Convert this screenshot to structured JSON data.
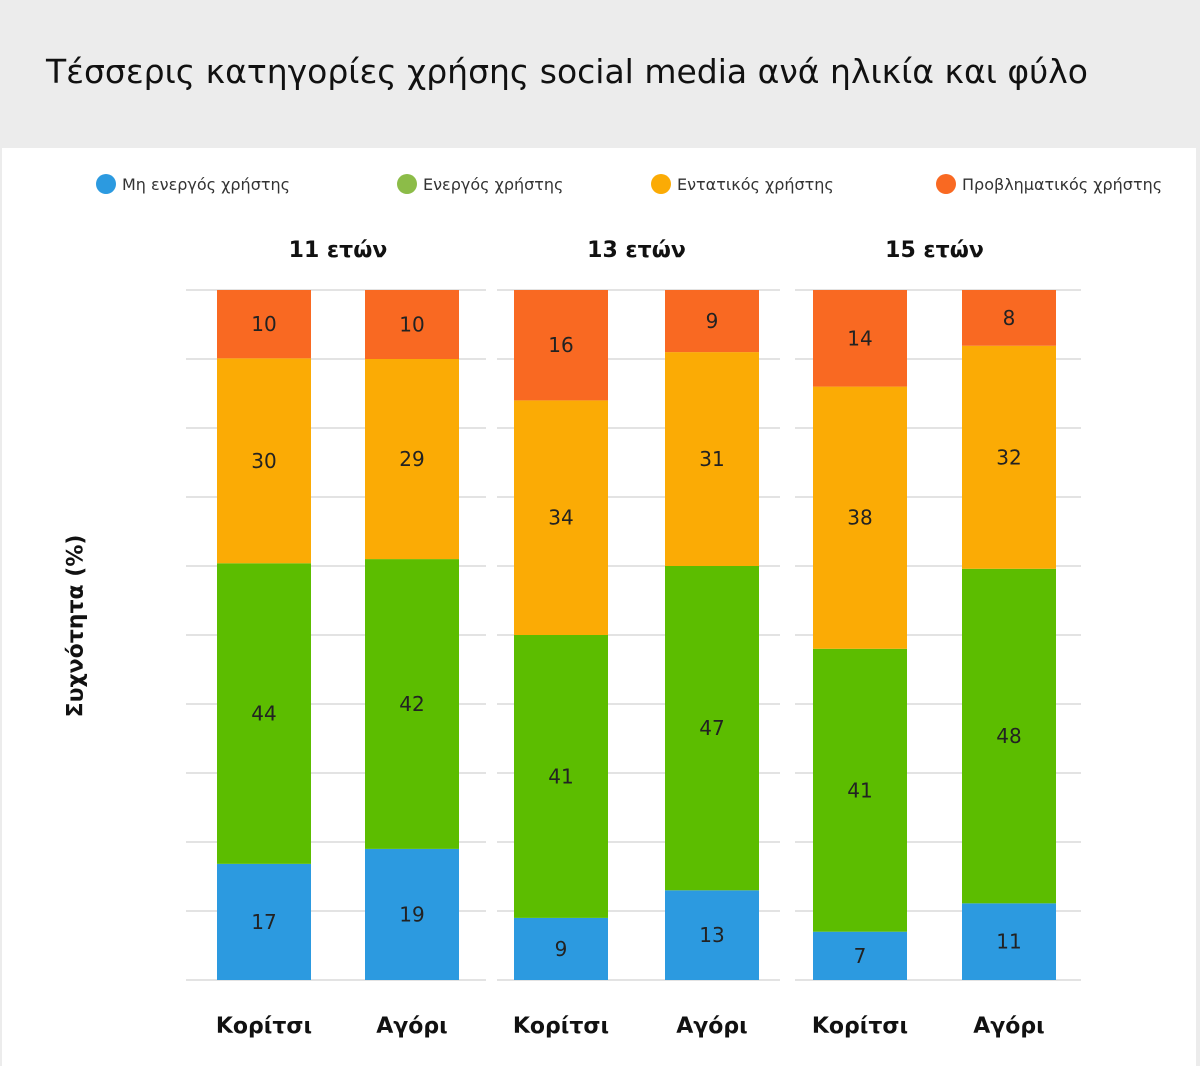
{
  "title": "Τέσσερις κατηγορίες χρήσης social media ανά ηλικία και φύλο",
  "chart_data": {
    "type": "bar",
    "stacked": true,
    "title": "Τέσσερις κατηγορίες χρήσης social media ανά ηλικία και φύλο",
    "ylabel": "Συχνότητα (%)",
    "xlabel": "",
    "ylim": [
      0,
      100
    ],
    "grid": true,
    "legend_position": "top",
    "groups": [
      {
        "label": "11 ετών",
        "categories": [
          "Κορίτσι",
          "Αγόρι"
        ]
      },
      {
        "label": "13 ετών",
        "categories": [
          "Κορίτσι",
          "Αγόρι"
        ]
      },
      {
        "label": "15 ετών",
        "categories": [
          "Κορίτσι",
          "Αγόρι"
        ]
      }
    ],
    "categories": [
      "Κορίτσι",
      "Αγόρι",
      "Κορίτσι",
      "Αγόρι",
      "Κορίτσι",
      "Αγόρι"
    ],
    "series": [
      {
        "name": "Μη ενεργός χρήστης",
        "color": "#2c9ae0",
        "values": [
          17,
          19,
          9,
          13,
          7,
          11
        ]
      },
      {
        "name": "Ενεργός χρήστης",
        "color": "#5cbd00",
        "values": [
          44,
          42,
          41,
          47,
          41,
          48
        ]
      },
      {
        "name": "Εντατικός χρήστης",
        "color": "#fbab05",
        "values": [
          30,
          29,
          34,
          31,
          38,
          32
        ]
      },
      {
        "name": "Προβληματικός χρήστης",
        "color": "#f96922",
        "values": [
          10,
          10,
          16,
          9,
          14,
          8
        ]
      }
    ],
    "legend_dot_colors": [
      "#2c9ae0",
      "#8cbc48",
      "#fbab05",
      "#f96922"
    ]
  }
}
